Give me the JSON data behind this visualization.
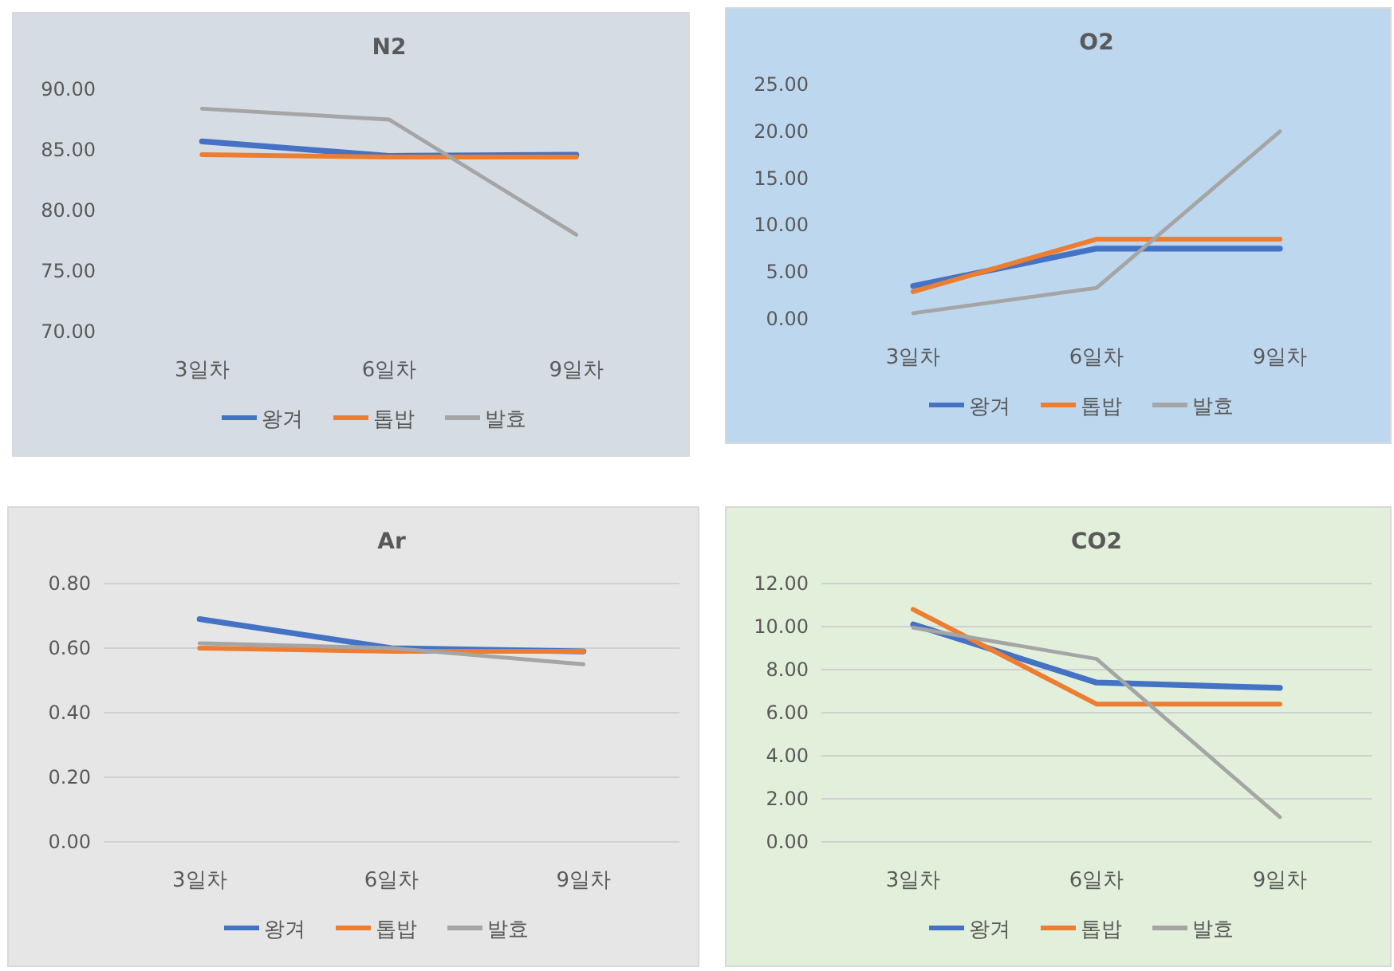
{
  "chart_data": [
    {
      "type": "line",
      "title": "N2",
      "categories": [
        "3일차",
        "6일차",
        "9일차"
      ],
      "ylim": [
        70,
        90
      ],
      "yticks": [
        {
          "value": 70,
          "label": "70.00"
        },
        {
          "value": 75,
          "label": "75.00"
        },
        {
          "value": 80,
          "label": "80.00"
        },
        {
          "value": 85,
          "label": "85.00"
        },
        {
          "value": 90,
          "label": "90.00"
        }
      ],
      "grid": false,
      "legend": "bottom",
      "series": [
        {
          "name": "왕겨",
          "color": "#4472c4",
          "values": [
            85.7,
            84.5,
            84.6
          ]
        },
        {
          "name": "톱밥",
          "color": "#ed7d31",
          "values": [
            84.6,
            84.4,
            84.4
          ]
        },
        {
          "name": "발효",
          "color": "#a5a5a5",
          "values": [
            88.4,
            87.5,
            78.0
          ]
        }
      ]
    },
    {
      "type": "line",
      "title": "O2",
      "categories": [
        "3일차",
        "6일차",
        "9일차"
      ],
      "ylim": [
        0,
        25
      ],
      "yticks": [
        {
          "value": 0,
          "label": "0.00"
        },
        {
          "value": 5,
          "label": "5.00"
        },
        {
          "value": 10,
          "label": "10.00"
        },
        {
          "value": 15,
          "label": "15.00"
        },
        {
          "value": 20,
          "label": "20.00"
        },
        {
          "value": 25,
          "label": "25.00"
        }
      ],
      "grid": false,
      "legend": "bottom",
      "series": [
        {
          "name": "왕겨",
          "color": "#4472c4",
          "values": [
            3.5,
            7.5,
            7.5
          ]
        },
        {
          "name": "톱밥",
          "color": "#ed7d31",
          "values": [
            2.9,
            8.5,
            8.5
          ]
        },
        {
          "name": "발효",
          "color": "#a5a5a5",
          "values": [
            0.6,
            3.3,
            20.0
          ]
        }
      ]
    },
    {
      "type": "line",
      "title": "Ar",
      "categories": [
        "3일차",
        "6일차",
        "9일차"
      ],
      "ylim": [
        0,
        0.8
      ],
      "yticks": [
        {
          "value": 0,
          "label": "0.00"
        },
        {
          "value": 0.2,
          "label": "0.20"
        },
        {
          "value": 0.4,
          "label": "0.40"
        },
        {
          "value": 0.6,
          "label": "0.60"
        },
        {
          "value": 0.8,
          "label": "0.80"
        }
      ],
      "grid": "y",
      "legend": "bottom",
      "series": [
        {
          "name": "왕겨",
          "color": "#4472c4",
          "values": [
            0.69,
            0.6,
            0.59
          ]
        },
        {
          "name": "톱밥",
          "color": "#ed7d31",
          "values": [
            0.6,
            0.59,
            0.59
          ]
        },
        {
          "name": "발효",
          "color": "#a5a5a5",
          "values": [
            0.615,
            0.6,
            0.55
          ]
        }
      ]
    },
    {
      "type": "line",
      "title": "CO2",
      "categories": [
        "3일차",
        "6일차",
        "9일차"
      ],
      "ylim": [
        0,
        12
      ],
      "yticks": [
        {
          "value": 0,
          "label": "0.00"
        },
        {
          "value": 2,
          "label": "2.00"
        },
        {
          "value": 4,
          "label": "4.00"
        },
        {
          "value": 6,
          "label": "6.00"
        },
        {
          "value": 8,
          "label": "8.00"
        },
        {
          "value": 10,
          "label": "10.00"
        },
        {
          "value": 12,
          "label": "12.00"
        }
      ],
      "grid": "y",
      "legend": "bottom",
      "series": [
        {
          "name": "왕겨",
          "color": "#4472c4",
          "values": [
            10.1,
            7.4,
            7.15
          ]
        },
        {
          "name": "톱밥",
          "color": "#ed7d31",
          "values": [
            10.8,
            6.4,
            6.4
          ]
        },
        {
          "name": "발효",
          "color": "#a5a5a5",
          "values": [
            9.95,
            8.5,
            1.15
          ]
        }
      ]
    }
  ]
}
